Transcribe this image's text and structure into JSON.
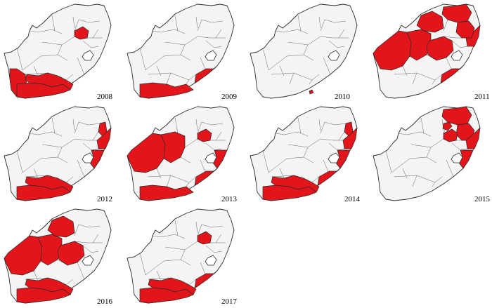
{
  "colors": {
    "affected": "#e3151b",
    "unaffected": "#f4f4f4",
    "border": "#2b2b2b"
  },
  "maps": [
    {
      "year": "2008",
      "affected": [
        "western-cape-west",
        "western-cape-south",
        "eastern-cape-west",
        "free-state-north"
      ]
    },
    {
      "year": "2009",
      "affected": [
        "western-cape-south",
        "eastern-cape-east"
      ]
    },
    {
      "year": "2010",
      "affected": [
        "eastern-cape-coast-small"
      ]
    },
    {
      "year": "2011",
      "affected": [
        "northern-cape-west",
        "northern-cape-east",
        "northwest",
        "free-state",
        "limpopo",
        "eastern-cape-east",
        "kwazulu-natal-north",
        "mpumalanga"
      ]
    },
    {
      "year": "2012",
      "affected": [
        "western-cape-south",
        "eastern-cape-west",
        "kwazulu-natal-north",
        "kwazulu-natal-south",
        "mpumalanga-east"
      ]
    },
    {
      "year": "2013",
      "affected": [
        "northern-cape-west",
        "northern-cape-east",
        "western-cape-south",
        "free-state-north",
        "kwazulu-natal-south",
        "eastern-cape-east"
      ]
    },
    {
      "year": "2014",
      "affected": [
        "western-cape-south",
        "eastern-cape-west",
        "eastern-cape-east",
        "kwazulu-natal-north",
        "kwazulu-natal-south",
        "mpumalanga-east"
      ]
    },
    {
      "year": "2015",
      "affected": [
        "limpopo",
        "mpumalanga",
        "gauteng",
        "free-state-north",
        "kwazulu-natal-north",
        "kwazulu-natal-south"
      ]
    },
    {
      "year": "2016",
      "affected": [
        "northern-cape-west",
        "northern-cape-east",
        "northwest",
        "free-state",
        "western-cape-south",
        "eastern-cape-west"
      ]
    },
    {
      "year": "2017",
      "affected": [
        "western-cape-south",
        "eastern-cape-west",
        "eastern-cape-east",
        "free-state-north"
      ]
    }
  ]
}
